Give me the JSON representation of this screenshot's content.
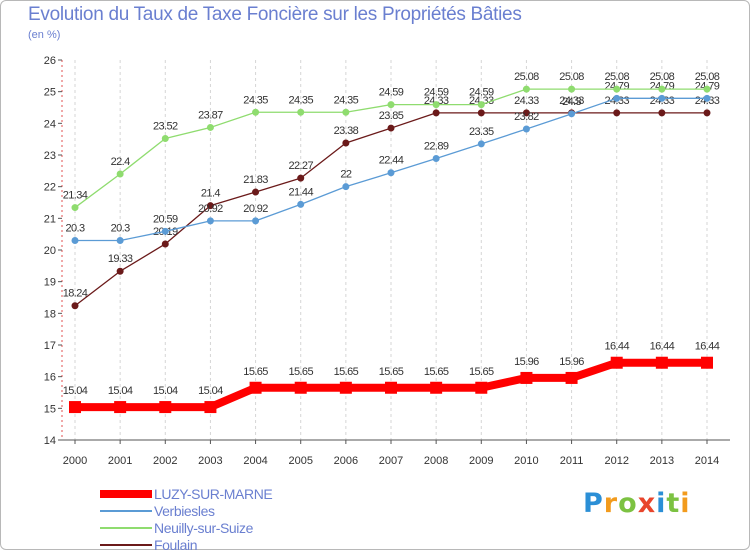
{
  "header": {
    "title": "Evolution du Taux de Taxe Foncière sur les Propriétés Bâties",
    "unit": "(en %)"
  },
  "logo": {
    "text": "Proxiti",
    "colors": [
      "#2b8fd6",
      "#f29b1d",
      "#7cc242",
      "#e8452c",
      "#2b8fd6",
      "#7cc242",
      "#f29b1d"
    ]
  },
  "chart_data": {
    "type": "line",
    "title": "Evolution du Taux de Taxe Foncière sur les Propriétés Bâties",
    "ylabel": "(en %)",
    "xlabel": "",
    "ylim": [
      14,
      26
    ],
    "yticks": [
      14,
      15,
      16,
      17,
      18,
      19,
      20,
      21,
      22,
      23,
      24,
      25,
      26
    ],
    "grid": "vertical dashed",
    "legend_placement": "bottom-left",
    "x": [
      2000,
      2001,
      2002,
      2003,
      2004,
      2005,
      2006,
      2007,
      2008,
      2009,
      2010,
      2011,
      2012,
      2013,
      2014
    ],
    "series": [
      {
        "name": "Foulain",
        "color": "#6b1a1a",
        "values": [
          18.24,
          19.33,
          20.19,
          21.4,
          21.83,
          22.27,
          23.38,
          23.85,
          24.33,
          24.33,
          24.33,
          24.33,
          24.33,
          24.33,
          24.33
        ],
        "labels": [
          "18.24",
          "19.33",
          "20.19",
          "21.4",
          "21.83",
          "22.27",
          "23.38",
          "23.85",
          "24.33",
          "24.33",
          "24.33",
          "24.33",
          "24.33",
          "24.33",
          "24.33"
        ],
        "width": 1.3
      },
      {
        "name": "Verbiesles",
        "color": "#5b9bd5",
        "values": [
          20.3,
          20.3,
          20.59,
          20.92,
          20.92,
          21.44,
          22.0,
          22.44,
          22.89,
          23.35,
          23.82,
          24.3,
          24.79,
          24.79,
          24.79
        ],
        "labels": [
          "20.3",
          "20.3",
          "20.59",
          "20.92",
          "20.92",
          "21.44",
          "22",
          "22.44",
          "22.89",
          "23.35",
          "23.82",
          "24.3",
          "24.79",
          "24.79",
          "24.79"
        ],
        "width": 1.3
      },
      {
        "name": "Neuilly-sur-Suize",
        "color": "#8fdc6f",
        "values": [
          21.34,
          22.4,
          23.52,
          23.87,
          24.35,
          24.35,
          24.35,
          24.59,
          24.59,
          24.59,
          25.08,
          25.08,
          25.08,
          25.08,
          25.08
        ],
        "labels": [
          "21.34",
          "22.4",
          "23.52",
          "23.87",
          "24.35",
          "24.35",
          "24.35",
          "24.59",
          "24.59",
          "24.59",
          "25.08",
          "25.08",
          "25.08",
          "25.08",
          "25.08"
        ],
        "width": 1.3
      },
      {
        "name": "LUZY-SUR-MARNE",
        "color": "#ff0000",
        "values": [
          15.04,
          15.04,
          15.04,
          15.04,
          15.65,
          15.65,
          15.65,
          15.65,
          15.65,
          15.65,
          15.96,
          15.96,
          16.44,
          16.44,
          16.44
        ],
        "labels": [
          "15.04",
          "15.04",
          "15.04",
          "15.04",
          "15.65",
          "15.65",
          "15.65",
          "15.65",
          "15.65",
          "15.65",
          "15.96",
          "15.96",
          "16.44",
          "16.44",
          "16.44"
        ],
        "width": 8
      }
    ],
    "legend": [
      {
        "name": "LUZY-SUR-MARNE",
        "color": "#ff0000",
        "thick": true
      },
      {
        "name": "Verbiesles",
        "color": "#5b9bd5",
        "thick": false
      },
      {
        "name": "Neuilly-sur-Suize",
        "color": "#8fdc6f",
        "thick": false
      },
      {
        "name": "Foulain",
        "color": "#6b1a1a",
        "thick": false
      }
    ]
  }
}
